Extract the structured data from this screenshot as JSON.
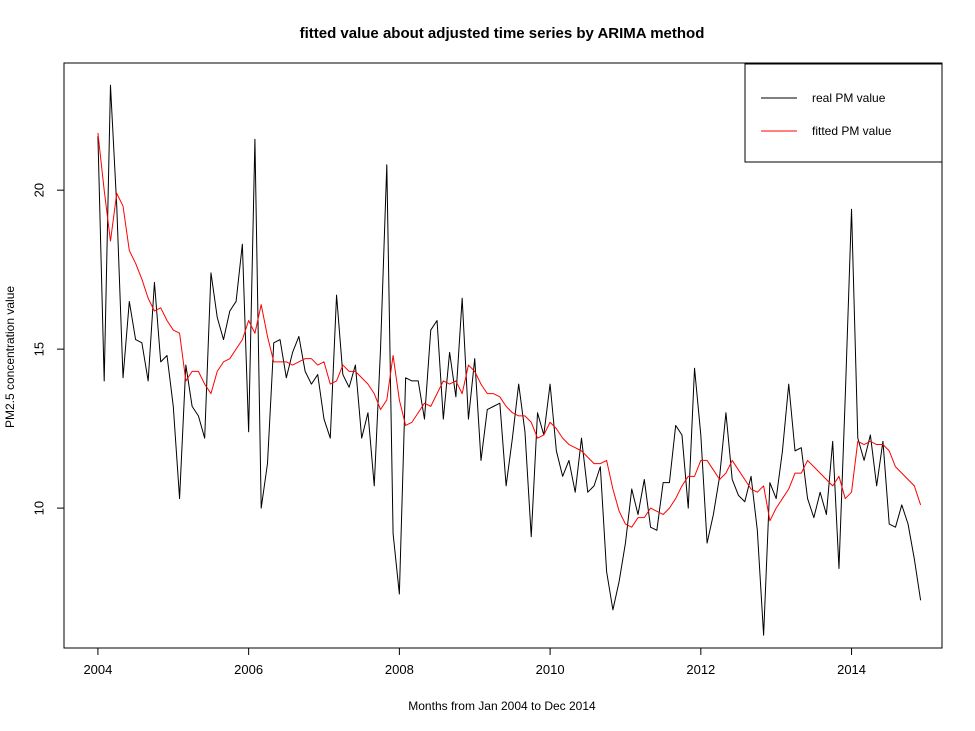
{
  "chart_data": {
    "type": "line",
    "title": "fitted value about adjusted time series by ARIMA method",
    "xlabel": "Months from Jan 2004 to Dec 2014",
    "ylabel": "PM2.5 concentration value",
    "xlim": [
      2003.55,
      2015.2
    ],
    "ylim": [
      5.6,
      24.0
    ],
    "x_ticks": [
      2004,
      2006,
      2008,
      2010,
      2012,
      2014
    ],
    "y_ticks": [
      10,
      15,
      20
    ],
    "x_start": 2004.0,
    "x_step": 0.08333,
    "legend": {
      "position": "top-right",
      "items": [
        {
          "label": "real PM value",
          "color": "#000000"
        },
        {
          "label": "fitted PM value",
          "color": "#ff0000"
        }
      ]
    },
    "series": [
      {
        "name": "real PM value",
        "color": "#000000",
        "values": [
          21.7,
          14.0,
          23.3,
          19.5,
          14.1,
          16.5,
          15.3,
          15.2,
          14.0,
          17.1,
          14.6,
          14.8,
          13.2,
          10.3,
          14.5,
          13.2,
          12.9,
          12.2,
          17.4,
          16.0,
          15.3,
          16.2,
          16.5,
          18.3,
          12.4,
          21.6,
          10.0,
          11.4,
          15.2,
          15.3,
          14.1,
          14.9,
          15.4,
          14.3,
          13.9,
          14.2,
          12.8,
          12.2,
          16.7,
          14.2,
          13.8,
          14.5,
          12.2,
          13.0,
          10.7,
          15.0,
          20.8,
          9.2,
          7.3,
          14.1,
          14.0,
          14.0,
          12.8,
          15.6,
          15.9,
          12.8,
          14.9,
          13.5,
          16.6,
          12.8,
          14.7,
          11.5,
          13.1,
          13.2,
          13.3,
          10.7,
          12.2,
          13.9,
          12.4,
          9.1,
          13.0,
          12.3,
          13.9,
          11.8,
          11.0,
          11.5,
          10.5,
          12.2,
          10.5,
          10.7,
          11.3,
          8.0,
          6.8,
          7.7,
          8.9,
          10.6,
          9.8,
          10.9,
          9.4,
          9.3,
          10.8,
          10.8,
          12.6,
          12.3,
          10.0,
          14.4,
          12.3,
          8.9,
          9.8,
          11.0,
          13.0,
          10.9,
          10.4,
          10.2,
          11.0,
          9.3,
          6.0,
          10.8,
          10.3,
          11.8,
          13.9,
          11.8,
          11.9,
          10.3,
          9.7,
          10.5,
          9.8,
          12.1,
          8.1,
          13.5,
          19.4,
          12.2,
          11.5,
          12.3,
          10.7,
          12.1,
          9.5,
          9.4,
          10.1,
          9.5,
          8.4,
          7.1
        ]
      },
      {
        "name": "fitted PM value",
        "color": "#ff0000",
        "values": [
          21.8,
          20.0,
          18.4,
          19.9,
          19.5,
          18.1,
          17.7,
          17.2,
          16.6,
          16.2,
          16.3,
          15.9,
          15.6,
          15.5,
          14.0,
          14.3,
          14.3,
          13.9,
          13.6,
          14.3,
          14.6,
          14.7,
          15.0,
          15.3,
          15.9,
          15.5,
          16.4,
          15.4,
          14.6,
          14.6,
          14.6,
          14.5,
          14.6,
          14.7,
          14.7,
          14.5,
          14.6,
          13.9,
          14.0,
          14.5,
          14.3,
          14.3,
          14.1,
          13.9,
          13.6,
          13.1,
          13.4,
          14.8,
          13.4,
          12.6,
          12.7,
          13.0,
          13.3,
          13.2,
          13.6,
          14.0,
          13.9,
          14.0,
          13.6,
          14.5,
          14.3,
          13.9,
          13.6,
          13.6,
          13.5,
          13.2,
          13.0,
          12.9,
          12.9,
          12.7,
          12.2,
          12.3,
          12.7,
          12.5,
          12.2,
          12.0,
          11.9,
          11.8,
          11.6,
          11.4,
          11.4,
          11.5,
          10.6,
          9.9,
          9.5,
          9.4,
          9.7,
          9.7,
          10.0,
          9.9,
          9.8,
          10.0,
          10.3,
          10.7,
          11.0,
          11.0,
          11.5,
          11.5,
          11.2,
          10.9,
          11.1,
          11.5,
          11.2,
          10.9,
          10.6,
          10.5,
          10.7,
          9.6,
          10.0,
          10.3,
          10.6,
          11.1,
          11.1,
          11.5,
          11.3,
          11.1,
          10.9,
          10.7,
          11.0,
          10.3,
          10.5,
          12.1,
          12.0,
          12.1,
          12.0,
          12.0,
          11.8,
          11.3,
          11.1,
          10.9,
          10.7,
          10.1
        ]
      }
    ]
  }
}
